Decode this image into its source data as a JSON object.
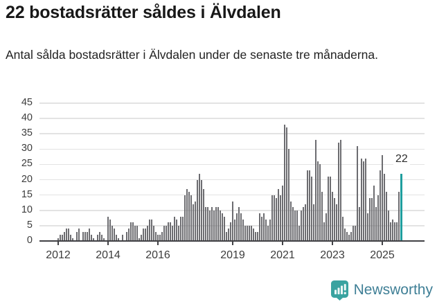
{
  "header": {
    "title": "22 bostadsrätter såldes i Älvdalen",
    "subtitle": "Antal sålda bostadsrätter i Älvdalen under de senaste tre månaderna."
  },
  "chart_data": {
    "type": "bar",
    "title": "22 bostadsrätter såldes i Älvdalen",
    "xlabel": "",
    "ylabel": "",
    "x_unit": "month",
    "x_start": "2012",
    "x_ticks": [
      2012,
      2014,
      2016,
      2019,
      2021,
      2023,
      2025
    ],
    "y_ticks": [
      0,
      5,
      10,
      15,
      20,
      25,
      30,
      35,
      40,
      45
    ],
    "ylim": [
      0,
      45
    ],
    "grid": "horizontal",
    "legend": "none",
    "values": [
      1,
      2,
      2,
      3,
      4,
      4,
      2,
      1,
      0,
      3,
      4,
      0,
      3,
      3,
      3,
      4,
      2,
      1,
      0,
      2,
      3,
      2,
      1,
      0,
      8,
      7,
      5,
      4,
      2,
      1,
      0,
      2,
      0,
      3,
      4,
      6,
      6,
      5,
      5,
      1,
      2,
      4,
      4,
      5,
      7,
      7,
      5,
      3,
      2,
      2,
      3,
      5,
      5,
      6,
      6,
      5,
      8,
      7,
      5,
      8,
      8,
      15,
      17,
      16,
      15,
      12,
      13,
      20,
      22,
      20,
      17,
      11,
      11,
      10,
      11,
      10,
      11,
      11,
      10,
      9,
      8,
      3,
      4,
      6,
      13,
      7,
      9,
      11,
      9,
      7,
      5,
      5,
      5,
      5,
      4,
      3,
      3,
      9,
      8,
      9,
      7,
      5,
      7,
      15,
      15,
      14,
      17,
      15,
      18,
      38,
      37,
      30,
      13,
      11,
      10,
      10,
      5,
      10,
      11,
      12,
      23,
      23,
      21,
      12,
      33,
      26,
      25,
      16,
      6,
      9,
      21,
      21,
      16,
      14,
      12,
      32,
      33,
      8,
      4,
      3,
      2,
      3,
      5,
      5,
      31,
      11,
      27,
      26,
      27,
      9,
      14,
      14,
      18,
      11,
      15,
      23,
      28,
      22,
      16,
      10,
      6,
      7,
      6,
      6,
      16,
      22
    ],
    "highlight_last": true,
    "annotation": {
      "label": "22",
      "value": 22
    },
    "colors": {
      "bar": "#6c6c70",
      "highlight": "#1f9e9e",
      "grid": "#e3e3e3",
      "axis": "#404044",
      "text": "#3c3c3c"
    }
  },
  "footer": {
    "brand": "Newsworthy",
    "brand_color": "#3f7f96",
    "icon": "newsworthy-bubble-chart-icon",
    "icon_color": "#3aa3a0"
  }
}
